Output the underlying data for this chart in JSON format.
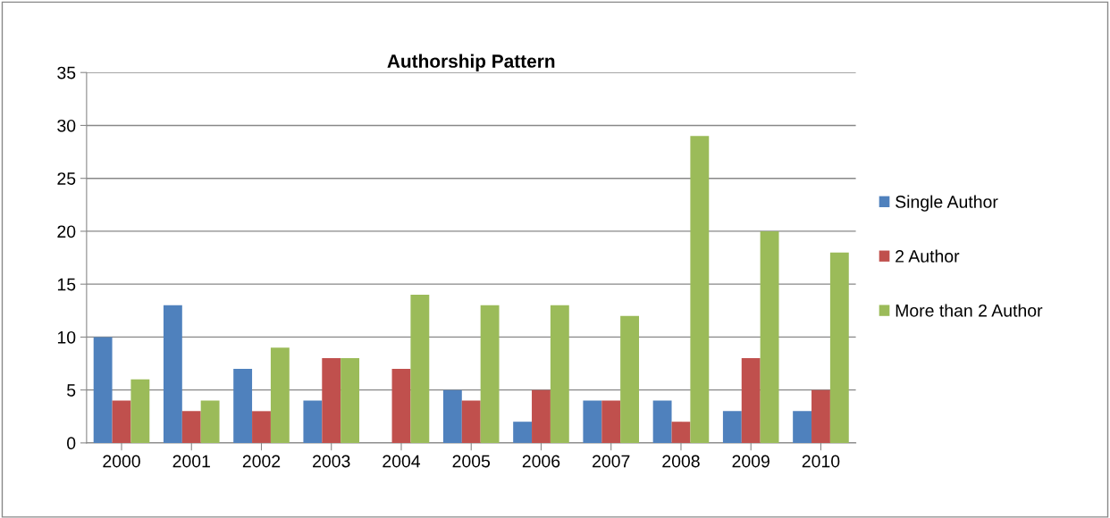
{
  "chart_data": {
    "type": "bar",
    "title": "Authorship Pattern",
    "categories": [
      "2000",
      "2001",
      "2002",
      "2003",
      "2004",
      "2005",
      "2006",
      "2007",
      "2008",
      "2009",
      "2010"
    ],
    "series": [
      {
        "name": "Single Author",
        "color": "#4f81bd",
        "values": [
          10,
          13,
          7,
          4,
          0,
          5,
          2,
          4,
          4,
          3,
          3
        ]
      },
      {
        "name": "2 Author",
        "color": "#c0504d",
        "values": [
          4,
          3,
          3,
          8,
          7,
          4,
          5,
          4,
          2,
          8,
          5
        ]
      },
      {
        "name": "More than 2 Author",
        "color": "#9bbb59",
        "values": [
          6,
          4,
          9,
          8,
          14,
          13,
          13,
          12,
          29,
          20,
          18
        ]
      }
    ],
    "ylim": [
      0,
      35
    ],
    "yticks": [
      0,
      5,
      10,
      15,
      20,
      25,
      30,
      35
    ],
    "grid": "y",
    "legend": "right"
  }
}
